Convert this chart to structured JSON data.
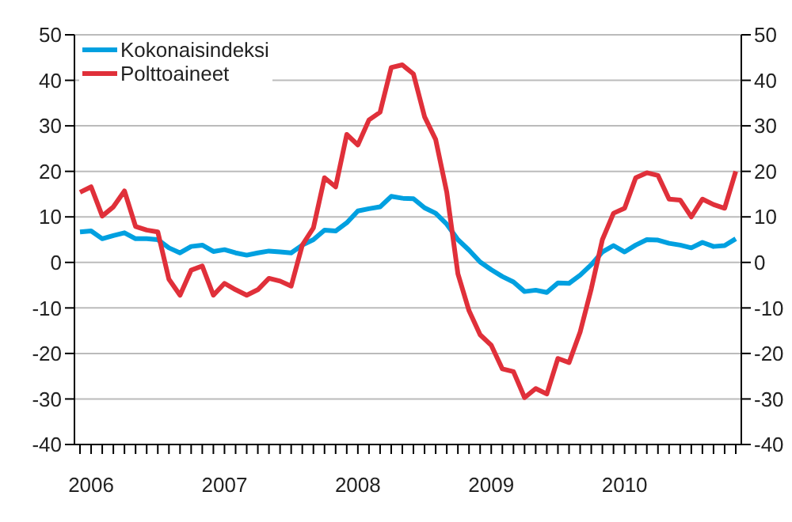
{
  "chart_data": {
    "type": "line",
    "categories": [
      null,
      "2006",
      null,
      null,
      null,
      null,
      null,
      null,
      null,
      null,
      null,
      null,
      null,
      "2007",
      null,
      null,
      null,
      null,
      null,
      null,
      null,
      null,
      null,
      null,
      null,
      "2008",
      null,
      null,
      null,
      null,
      null,
      null,
      null,
      null,
      null,
      null,
      null,
      "2009",
      null,
      null,
      null,
      null,
      null,
      null,
      null,
      null,
      null,
      null,
      null,
      "2010",
      null,
      null,
      null,
      null,
      null,
      null,
      null,
      null,
      null,
      null
    ],
    "series": [
      {
        "name": "Kokonaisindeksi",
        "color": "#00a0e0",
        "values": [
          6.7,
          6.9,
          5.2,
          5.9,
          6.5,
          5.2,
          5.2,
          5.0,
          3.2,
          2.1,
          3.5,
          3.8,
          2.4,
          2.8,
          2.1,
          1.6,
          2.1,
          2.5,
          2.3,
          2.1,
          3.8,
          5.0,
          7.1,
          6.9,
          8.7,
          11.3,
          11.8,
          12.2,
          14.5,
          14.1,
          14.0,
          12.0,
          10.8,
          8.4,
          5.0,
          2.7,
          0.1,
          -1.6,
          -3.1,
          -4.3,
          -6.4,
          -6.1,
          -6.6,
          -4.5,
          -4.6,
          -2.8,
          -0.5,
          2.3,
          3.7,
          2.3,
          3.8,
          5.0,
          4.9,
          4.2,
          3.8,
          3.2,
          4.4,
          3.5,
          3.7,
          5.2
        ]
      },
      {
        "name": "Polttoaineet",
        "color": "#e0303a",
        "values": [
          15.4,
          16.6,
          10.2,
          12.2,
          15.7,
          7.9,
          7.1,
          6.7,
          -3.7,
          -7.2,
          -1.7,
          -0.8,
          -7.2,
          -4.6,
          -6.0,
          -7.2,
          -6.0,
          -3.5,
          -4.1,
          -5.2,
          3.8,
          7.6,
          18.6,
          16.6,
          28.1,
          25.8,
          31.3,
          33.0,
          42.8,
          43.4,
          41.4,
          32.0,
          27.0,
          15.4,
          -2.5,
          -10.6,
          -15.9,
          -18.2,
          -23.4,
          -24.0,
          -29.7,
          -27.7,
          -28.9,
          -21.1,
          -22.0,
          -15.3,
          -5.8,
          5.0,
          10.8,
          11.9,
          18.6,
          19.7,
          19.1,
          13.9,
          13.7,
          10.0,
          13.9,
          12.7,
          11.9,
          20.0
        ]
      }
    ],
    "ylim": [
      -40,
      50
    ],
    "yticks": [
      -40,
      -30,
      -20,
      -10,
      0,
      10,
      20,
      30,
      40,
      50
    ],
    "y2lim": [
      -40,
      50
    ],
    "y2ticks": [
      -40,
      -30,
      -20,
      -10,
      0,
      10,
      20,
      30,
      40,
      50
    ],
    "grid": "y",
    "legend": "top left",
    "marker": "none",
    "line_style": "solid"
  }
}
